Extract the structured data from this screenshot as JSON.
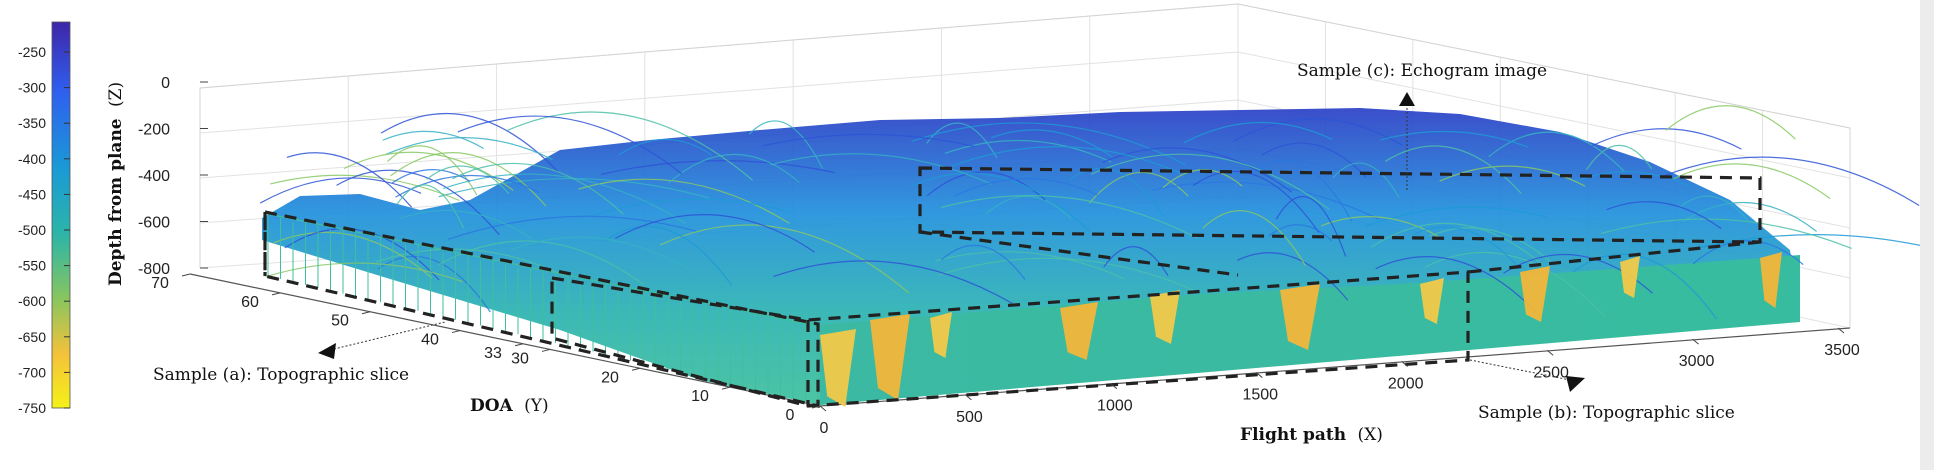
{
  "chart_data": {
    "type": "surface3d",
    "x_axis": {
      "label": "Flight path",
      "label_var": "(X)",
      "range": [
        0,
        3500
      ],
      "ticks": [
        0,
        500,
        1000,
        1500,
        2000,
        2500,
        3000,
        3500
      ]
    },
    "y_axis": {
      "label": "DOA",
      "label_var": "(Y)",
      "range": [
        0,
        70
      ],
      "ticks": [
        0,
        10,
        20,
        30,
        33,
        40,
        50,
        60,
        70
      ]
    },
    "z_axis": {
      "label": "Depth from plane",
      "label_var": "(Z)",
      "range": [
        -800,
        0
      ],
      "ticks": [
        0,
        -200,
        -400,
        -600,
        -800
      ]
    },
    "colorbar": {
      "range": [
        -750,
        -250
      ],
      "ticks": [
        -250,
        -300,
        -350,
        -400,
        -450,
        -500,
        -550,
        -600,
        -650,
        -700,
        -750
      ],
      "colormap": [
        "#3e26a8",
        "#2f5ff0",
        "#1a9ad6",
        "#2cb5a8",
        "#8bc55e",
        "#f4c23a",
        "#f5f118"
      ]
    },
    "annotations": [
      {
        "id": "a",
        "text": "Sample (a):  Topographic slice"
      },
      {
        "id": "b",
        "text": "Sample (b):  Topographic slice"
      },
      {
        "id": "c",
        "text": "Sample (c):  Echogram image"
      }
    ],
    "grid": true
  }
}
